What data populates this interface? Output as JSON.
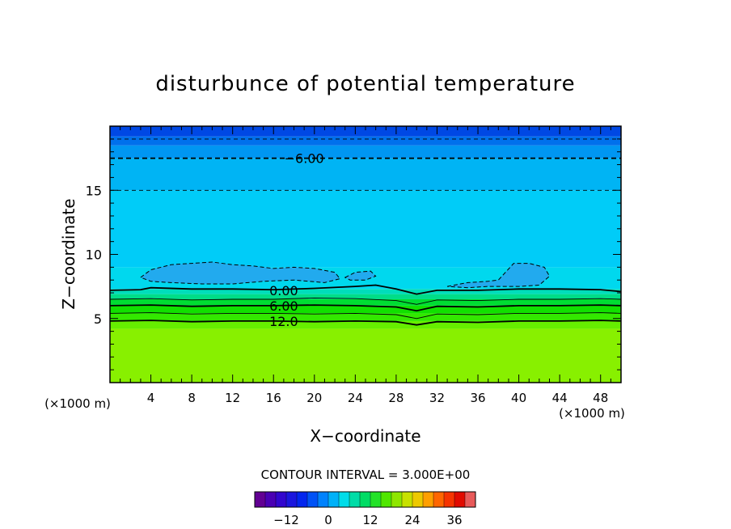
{
  "chart_data": {
    "type": "heatmap",
    "subtype": "filled-contour",
    "title": "disturbunce of potential temperature",
    "xlabel": "X−coordinate",
    "ylabel": "Z−coordinate",
    "x_unit_label": "(×1000 m)",
    "y_unit_label": "(×1000 m)",
    "xlim": [
      0,
      50
    ],
    "ylim": [
      0,
      20
    ],
    "x_ticks": [
      4,
      8,
      12,
      16,
      20,
      24,
      28,
      32,
      36,
      40,
      44,
      48
    ],
    "y_ticks": [
      5,
      10,
      15
    ],
    "contour_interval_label": "CONTOUR INTERVAL = 3.000E+00",
    "contour_labels": [
      {
        "text": "−6.00",
        "x": 19,
        "z": 17.5
      },
      {
        "text": "0.00",
        "x": 17,
        "z": 7.2
      },
      {
        "text": "6.00",
        "x": 17,
        "z": 6.0
      },
      {
        "text": "12.0",
        "x": 17,
        "z": 4.8
      }
    ],
    "colorbar": {
      "min": -21,
      "max": 42,
      "interval": 3,
      "ticks": [
        -12,
        0,
        12,
        24,
        36
      ]
    },
    "field_bands": [
      {
        "z_bottom": 0,
        "z_top": 4.2,
        "value": 17,
        "color": "#88f000"
      },
      {
        "z_bottom": 4.2,
        "z_top": 4.8,
        "value": 14,
        "color": "#66ee00"
      },
      {
        "z_bottom": 4.8,
        "z_top": 5.4,
        "value": 11,
        "color": "#33e800"
      },
      {
        "z_bottom": 5.4,
        "z_top": 6.0,
        "value": 8,
        "color": "#11e000"
      },
      {
        "z_bottom": 6.0,
        "z_top": 6.5,
        "value": 5,
        "color": "#00dd33"
      },
      {
        "z_bottom": 6.5,
        "z_top": 6.9,
        "value": 2,
        "color": "#00dd88"
      },
      {
        "z_bottom": 6.9,
        "z_top": 7.3,
        "value": -1,
        "color": "#00ddbb"
      },
      {
        "z_bottom": 7.3,
        "z_top": 9.0,
        "value": -3,
        "color": "#00d8ee"
      },
      {
        "z_bottom": 9.0,
        "z_top": 15.0,
        "value": -5,
        "color": "#00ccf8"
      },
      {
        "z_bottom": 15.0,
        "z_top": 17.5,
        "value": -6,
        "color": "#00b4f4"
      },
      {
        "z_bottom": 17.5,
        "z_top": 18.5,
        "value": -8,
        "color": "#0096f2"
      },
      {
        "z_bottom": 18.5,
        "z_top": 19.2,
        "value": -10,
        "color": "#0070ec"
      },
      {
        "z_bottom": 19.2,
        "z_top": 20,
        "value": -12,
        "color": "#0048e4"
      }
    ],
    "contours": [
      {
        "level": 12,
        "style": "solid-thick",
        "points": [
          [
            0,
            4.8
          ],
          [
            4,
            4.85
          ],
          [
            8,
            4.75
          ],
          [
            12,
            4.8
          ],
          [
            16,
            4.8
          ],
          [
            20,
            4.75
          ],
          [
            24,
            4.8
          ],
          [
            28,
            4.75
          ],
          [
            30,
            4.5
          ],
          [
            32,
            4.75
          ],
          [
            36,
            4.7
          ],
          [
            40,
            4.8
          ],
          [
            44,
            4.8
          ],
          [
            48,
            4.85
          ],
          [
            50,
            4.8
          ]
        ]
      },
      {
        "level": 9,
        "style": "solid-thin",
        "points": [
          [
            0,
            5.4
          ],
          [
            4,
            5.45
          ],
          [
            8,
            5.35
          ],
          [
            12,
            5.4
          ],
          [
            16,
            5.4
          ],
          [
            20,
            5.35
          ],
          [
            24,
            5.4
          ],
          [
            28,
            5.3
          ],
          [
            30,
            5.0
          ],
          [
            32,
            5.35
          ],
          [
            36,
            5.3
          ],
          [
            40,
            5.4
          ],
          [
            44,
            5.4
          ],
          [
            48,
            5.45
          ],
          [
            50,
            5.4
          ]
        ]
      },
      {
        "level": 6,
        "style": "solid-thick",
        "points": [
          [
            0,
            6.0
          ],
          [
            4,
            6.05
          ],
          [
            8,
            5.95
          ],
          [
            12,
            6.0
          ],
          [
            16,
            6.0
          ],
          [
            20,
            6.05
          ],
          [
            24,
            6.0
          ],
          [
            28,
            5.9
          ],
          [
            30,
            5.6
          ],
          [
            32,
            5.95
          ],
          [
            36,
            5.9
          ],
          [
            40,
            6.0
          ],
          [
            44,
            6.0
          ],
          [
            48,
            6.05
          ],
          [
            50,
            6.0
          ]
        ]
      },
      {
        "level": 3,
        "style": "solid-thin",
        "points": [
          [
            0,
            6.5
          ],
          [
            4,
            6.55
          ],
          [
            8,
            6.45
          ],
          [
            12,
            6.5
          ],
          [
            16,
            6.5
          ],
          [
            20,
            6.6
          ],
          [
            24,
            6.55
          ],
          [
            28,
            6.4
          ],
          [
            30,
            6.1
          ],
          [
            32,
            6.45
          ],
          [
            36,
            6.4
          ],
          [
            40,
            6.5
          ],
          [
            44,
            6.5
          ],
          [
            48,
            6.55
          ],
          [
            50,
            6.5
          ]
        ]
      },
      {
        "level": 0,
        "style": "solid-thick",
        "points": [
          [
            0,
            7.2
          ],
          [
            3,
            7.25
          ],
          [
            4,
            7.4
          ],
          [
            8,
            7.3
          ],
          [
            12,
            7.3
          ],
          [
            16,
            7.25
          ],
          [
            20,
            7.35
          ],
          [
            24,
            7.5
          ],
          [
            26,
            7.6
          ],
          [
            28,
            7.3
          ],
          [
            30,
            6.9
          ],
          [
            32,
            7.2
          ],
          [
            36,
            7.2
          ],
          [
            40,
            7.3
          ],
          [
            44,
            7.3
          ],
          [
            48,
            7.25
          ],
          [
            50,
            7.1
          ]
        ]
      },
      {
        "level": -6,
        "style": "dashed-thick",
        "points": [
          [
            0,
            17.5
          ],
          [
            10,
            17.5
          ],
          [
            20,
            17.5
          ],
          [
            30,
            17.5
          ],
          [
            40,
            17.5
          ],
          [
            50,
            17.5
          ]
        ]
      },
      {
        "level": -9,
        "style": "dashed-thin",
        "points": [
          [
            0,
            15.0
          ],
          [
            10,
            15.0
          ],
          [
            20,
            15.0
          ],
          [
            30,
            15.0
          ],
          [
            40,
            15.0
          ],
          [
            50,
            15.0
          ]
        ]
      },
      {
        "level": -12,
        "style": "dashed-thin",
        "points": [
          [
            0,
            19.0
          ],
          [
            10,
            19.0
          ],
          [
            20,
            19.0
          ],
          [
            30,
            19.0
          ],
          [
            40,
            19.0
          ],
          [
            50,
            19.0
          ]
        ]
      }
    ],
    "cold_pockets": [
      {
        "style": "dashed",
        "fill": "#22aaee",
        "points": [
          [
            3,
            8.2
          ],
          [
            4,
            8.8
          ],
          [
            6,
            9.2
          ],
          [
            8,
            9.3
          ],
          [
            10,
            9.4
          ],
          [
            12,
            9.2
          ],
          [
            14,
            9.1
          ],
          [
            16,
            8.9
          ],
          [
            18,
            9.0
          ],
          [
            20,
            8.9
          ],
          [
            22,
            8.6
          ],
          [
            22.5,
            8.1
          ],
          [
            21,
            7.8
          ],
          [
            18,
            8.0
          ],
          [
            15,
            7.9
          ],
          [
            12,
            7.7
          ],
          [
            9,
            7.7
          ],
          [
            6,
            7.8
          ],
          [
            4,
            7.9
          ],
          [
            3,
            8.2
          ]
        ]
      },
      {
        "style": "dashed",
        "fill": "#22aaee",
        "points": [
          [
            23,
            8.2
          ],
          [
            24,
            8.6
          ],
          [
            25.5,
            8.7
          ],
          [
            26,
            8.3
          ],
          [
            25,
            8.0
          ],
          [
            23.5,
            8.0
          ],
          [
            23,
            8.2
          ]
        ]
      },
      {
        "style": "dashed",
        "fill": "#22aaee",
        "points": [
          [
            33,
            7.5
          ],
          [
            35,
            7.8
          ],
          [
            37,
            7.9
          ],
          [
            38,
            8.0
          ],
          [
            39.5,
            9.3
          ],
          [
            41,
            9.3
          ],
          [
            42.5,
            9.0
          ],
          [
            43,
            8.3
          ],
          [
            42,
            7.6
          ],
          [
            40,
            7.5
          ],
          [
            37,
            7.5
          ],
          [
            35,
            7.4
          ],
          [
            33,
            7.5
          ]
        ]
      }
    ]
  }
}
